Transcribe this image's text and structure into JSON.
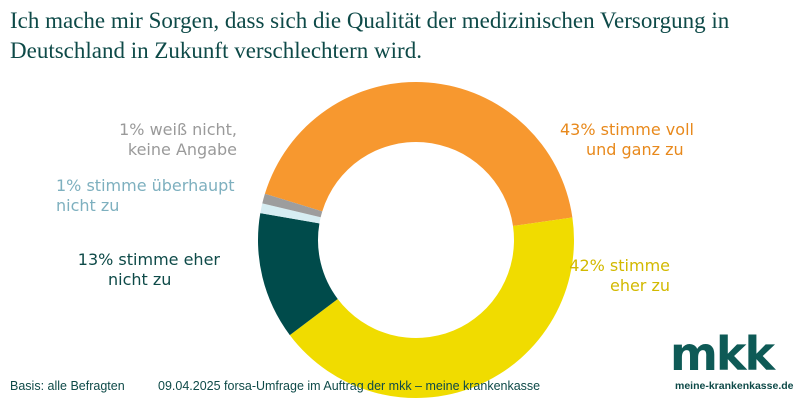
{
  "chart_data": {
    "type": "pie",
    "donut": true,
    "title": "Ich mache mir Sorgen, dass sich die Qualität der medizinischen Versorgung in Deutschland in Zukunft verschlechtern wird.",
    "slices": [
      {
        "label": "43% stimme voll und ganz zu",
        "value": 43,
        "color": "#f7982f",
        "text_color": "#e8891c"
      },
      {
        "label": "42% stimme eher zu",
        "value": 42,
        "color": "#f0dc00",
        "text_color": "#d2b900"
      },
      {
        "label": "13% stimme eher nicht zu",
        "value": 13,
        "color": "#004b4b",
        "text_color": "#0e4a48"
      },
      {
        "label": "1% stimme überhaupt nicht zu",
        "value": 1,
        "color": "#d6edf2",
        "text_color": "#7eb0bf"
      },
      {
        "label": "1% weiß nicht, keine Angabe",
        "value": 1,
        "color": "#9d9d9d",
        "text_color": "#9a9a9a"
      }
    ]
  },
  "labels": {
    "s0a": "43% stimme voll",
    "s0b": "und ganz zu",
    "s1a": "42% stimme",
    "s1b": "eher zu",
    "s2a": "13% stimme eher",
    "s2b": "nicht zu",
    "s3a": "1% stimme überhaupt",
    "s3b": "nicht zu",
    "s4a": "1% weiß nicht,",
    "s4b": "keine Angabe"
  },
  "footer": {
    "basis": "Basis: alle Befragten",
    "source": "09.04.2025 forsa-Umfrage im Auftrag der mkk – meine krankenkasse"
  },
  "logo": {
    "text": "mkk",
    "url": "meine-krankenkasse.de"
  }
}
